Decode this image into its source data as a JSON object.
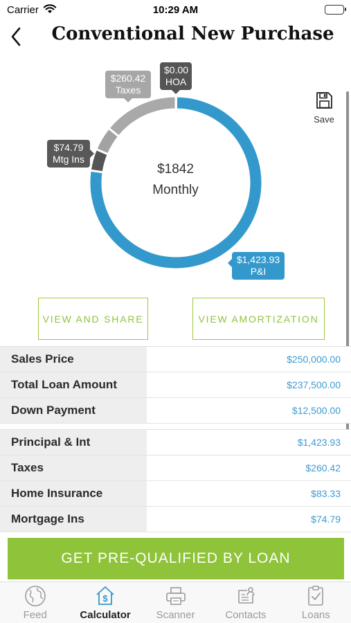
{
  "status_bar": {
    "carrier": "Carrier",
    "time": "10:29 AM"
  },
  "nav": {
    "title": "Conventional New Purchase"
  },
  "chart_data": {
    "type": "pie",
    "style": "donut",
    "center_value": "$1842",
    "center_label": "Monthly",
    "slices": [
      {
        "label": "P&I",
        "value_label": "$1,423.93",
        "value": 1423.93,
        "color": "#3399cc"
      },
      {
        "label": "Mtg Ins",
        "value_label": "$74.79",
        "value": 74.79,
        "color": "#555555"
      },
      {
        "label": "Home Insurance",
        "value": 83.33,
        "color": "#a3a3a3"
      },
      {
        "label": "Taxes",
        "value_label": "$260.42",
        "value": 260.42,
        "color": "#a9a9a9"
      },
      {
        "label": "HOA",
        "value_label": "$0.00",
        "value": 0.0,
        "color": "#555555"
      }
    ]
  },
  "save": {
    "label": "Save"
  },
  "actions": {
    "view_share": "VIEW AND SHARE",
    "view_amortization": "VIEW AMORTIZATION"
  },
  "loan_table": [
    {
      "label": "Sales Price",
      "value": "$250,000.00"
    },
    {
      "label": "Total Loan Amount",
      "value": "$237,500.00"
    },
    {
      "label": "Down Payment",
      "value": "$12,500.00"
    }
  ],
  "payment_table": [
    {
      "label": "Principal & Int",
      "value": "$1,423.93"
    },
    {
      "label": "Taxes",
      "value": "$260.42"
    },
    {
      "label": "Home Insurance",
      "value": "$83.33"
    },
    {
      "label": "Mortgage Ins",
      "value": "$74.79"
    }
  ],
  "cta": {
    "label": "GET PRE-QUALIFIED BY LOAN"
  },
  "tabs": [
    {
      "label": "Feed",
      "icon": "globe-icon"
    },
    {
      "label": "Calculator",
      "icon": "calculator-house-icon",
      "active": true
    },
    {
      "label": "Scanner",
      "icon": "printer-icon"
    },
    {
      "label": "Contacts",
      "icon": "contacts-icon"
    },
    {
      "label": "Loans",
      "icon": "clipboard-check-icon"
    }
  ],
  "colors": {
    "accent_green": "#8fc33a",
    "accent_blue": "#3399cc"
  }
}
